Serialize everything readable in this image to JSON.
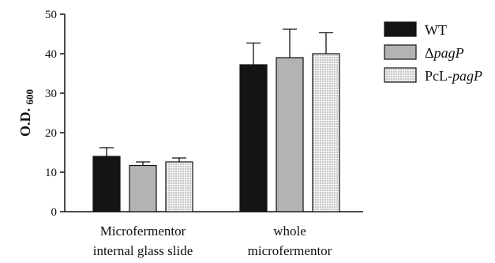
{
  "chart_data": {
    "type": "bar",
    "ylabel": "O.D.",
    "ylabel_sub": "600",
    "ylim": [
      0,
      50
    ],
    "yticks": [
      0,
      10,
      20,
      30,
      40,
      50
    ],
    "grid": false,
    "legend_position": "top-right",
    "categories": [
      [
        "Microfermentor",
        "internal glass slide"
      ],
      [
        "whole",
        "microfermentor"
      ]
    ],
    "series": [
      {
        "name": "WT",
        "name_parts": [
          {
            "text": "WT",
            "italic": false
          }
        ],
        "values": [
          14.0,
          37.2
        ],
        "errors": [
          2.2,
          5.5
        ],
        "fill": "#141414",
        "pattern": "solid"
      },
      {
        "name": "ΔpagP",
        "name_parts": [
          {
            "text": "Δ",
            "italic": false
          },
          {
            "text": "pagP",
            "italic": true
          }
        ],
        "values": [
          11.7,
          39.0
        ],
        "errors": [
          0.9,
          7.2
        ],
        "fill": "#b3b3b3",
        "pattern": "solid"
      },
      {
        "name": "PcL-pagP",
        "name_parts": [
          {
            "text": "PcL-",
            "italic": false
          },
          {
            "text": "pagP",
            "italic": true
          }
        ],
        "values": [
          12.6,
          40.0
        ],
        "errors": [
          1.0,
          5.3
        ],
        "fill": "#f2f2f2",
        "pattern": "dots"
      }
    ]
  }
}
